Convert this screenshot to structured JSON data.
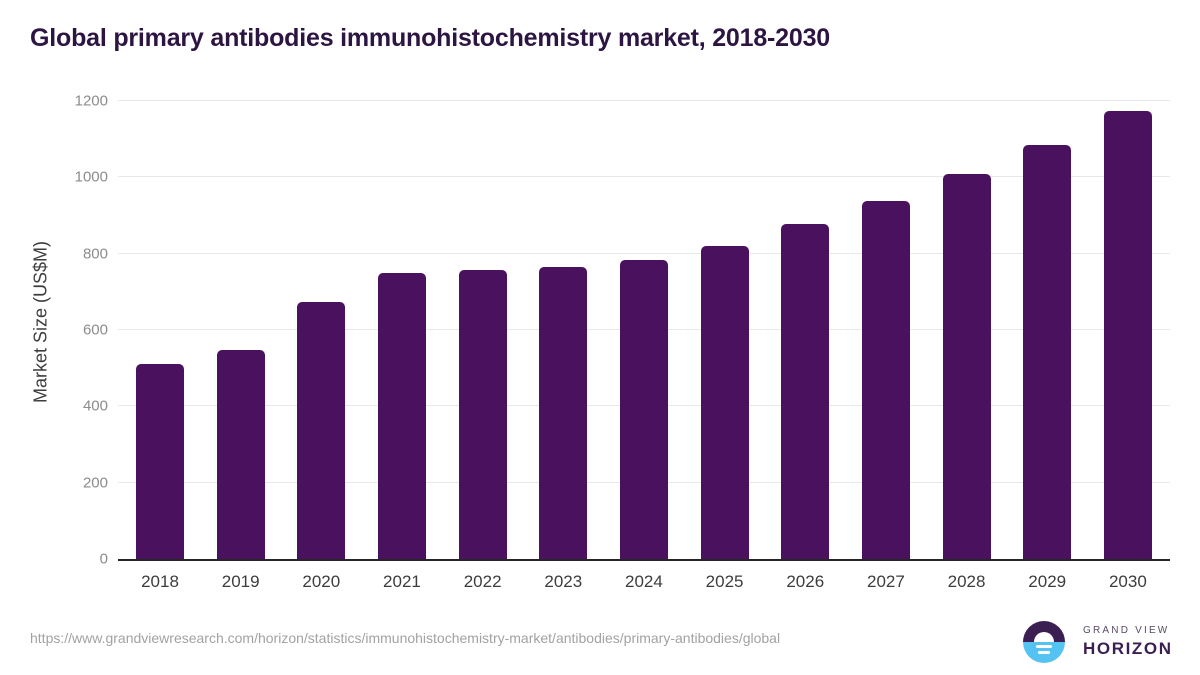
{
  "title": "Global primary antibodies immunohistochemistry market, 2018-2030",
  "chart_data": {
    "type": "bar",
    "title": "Global primary antibodies immunohistochemistry market, 2018-2030",
    "categories": [
      "2018",
      "2019",
      "2020",
      "2021",
      "2022",
      "2023",
      "2024",
      "2025",
      "2026",
      "2027",
      "2028",
      "2029",
      "2030"
    ],
    "values": [
      510,
      547,
      673,
      750,
      756,
      765,
      783,
      820,
      878,
      939,
      1010,
      1086,
      1173
    ],
    "xlabel": "",
    "ylabel": "Market Size (US$M)",
    "ylim": [
      0,
      1200
    ],
    "yticks": [
      0,
      200,
      400,
      600,
      800,
      1000,
      1200
    ],
    "grid": "horizontal",
    "legend": "none",
    "bar_color": "#4a115f"
  },
  "colors": {
    "title": "#2d1542",
    "bar": "#4a115f",
    "axis_line": "#262626",
    "gridline": "#e8e8e8",
    "y_tick": "#8c8c8c",
    "x_tick": "#3d3d3d",
    "url": "#a2a2a2",
    "logo_purple": "#3b1f53",
    "logo_blue": "#55c3f2"
  },
  "footer": {
    "source_url": "https://www.grandviewresearch.com/horizon/statistics/immunohistochemistry-market/antibodies/primary-antibodies/global",
    "logo": {
      "line1": "GRAND VIEW",
      "line2": "HORIZON",
      "icon": "horizon-sunrise-icon"
    }
  }
}
